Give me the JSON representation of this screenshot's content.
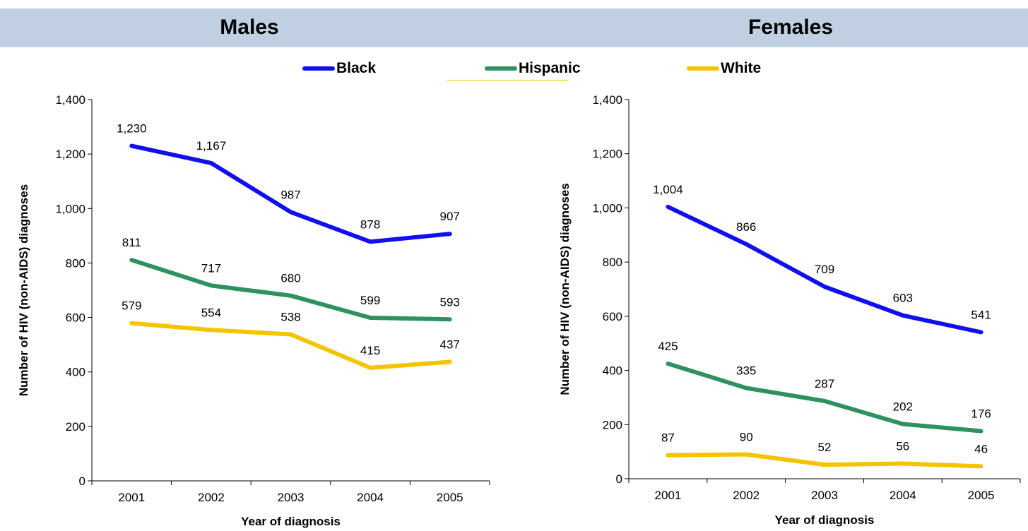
{
  "legend": [
    {
      "name": "Black",
      "color": "#1010ee"
    },
    {
      "name": "Hispanic",
      "color": "#2e9160"
    },
    {
      "name": "White",
      "color": "#f5c400"
    }
  ],
  "chart_data": [
    {
      "type": "line",
      "title": "Males",
      "xlabel": "Year of diagnosis",
      "ylabel": "Number of HIV (non-AIDS) diagnoses",
      "ylim": [
        0,
        1400
      ],
      "yticks": [
        "0",
        "200",
        "400",
        "600",
        "800",
        "1,000",
        "1,200",
        "1,400"
      ],
      "categories": [
        "2001",
        "2002",
        "2003",
        "2004",
        "2005"
      ],
      "series": [
        {
          "name": "Black",
          "color": "#1010ee",
          "values": [
            1230,
            1167,
            987,
            878,
            907
          ],
          "labels": [
            "1,230",
            "1,167",
            "987",
            "878",
            "907"
          ]
        },
        {
          "name": "Hispanic",
          "color": "#2e9160",
          "values": [
            811,
            717,
            680,
            599,
            593
          ],
          "labels": [
            "811",
            "717",
            "680",
            "599",
            "593"
          ]
        },
        {
          "name": "White",
          "color": "#f5c400",
          "values": [
            579,
            554,
            538,
            415,
            437
          ],
          "labels": [
            "579",
            "554",
            "538",
            "415",
            "437"
          ]
        }
      ]
    },
    {
      "type": "line",
      "title": "Females",
      "xlabel": "Year of diagnosis",
      "ylabel": "Number of HIV (non-AIDS) diagnoses",
      "ylim": [
        0,
        1400
      ],
      "yticks": [
        "0",
        "200",
        "400",
        "600",
        "800",
        "1,000",
        "1,200",
        "1,400"
      ],
      "categories": [
        "2001",
        "2002",
        "2003",
        "2004",
        "2005"
      ],
      "series": [
        {
          "name": "Black",
          "color": "#1010ee",
          "values": [
            1004,
            866,
            709,
            603,
            541
          ],
          "labels": [
            "1,004",
            "866",
            "709",
            "603",
            "541"
          ]
        },
        {
          "name": "Hispanic",
          "color": "#2e9160",
          "values": [
            425,
            335,
            287,
            202,
            176
          ],
          "labels": [
            "425",
            "335",
            "287",
            "202",
            "176"
          ]
        },
        {
          "name": "White",
          "color": "#f5c400",
          "values": [
            87,
            90,
            52,
            56,
            46
          ],
          "labels": [
            "87",
            "90",
            "52",
            "56",
            "46"
          ]
        }
      ]
    }
  ]
}
